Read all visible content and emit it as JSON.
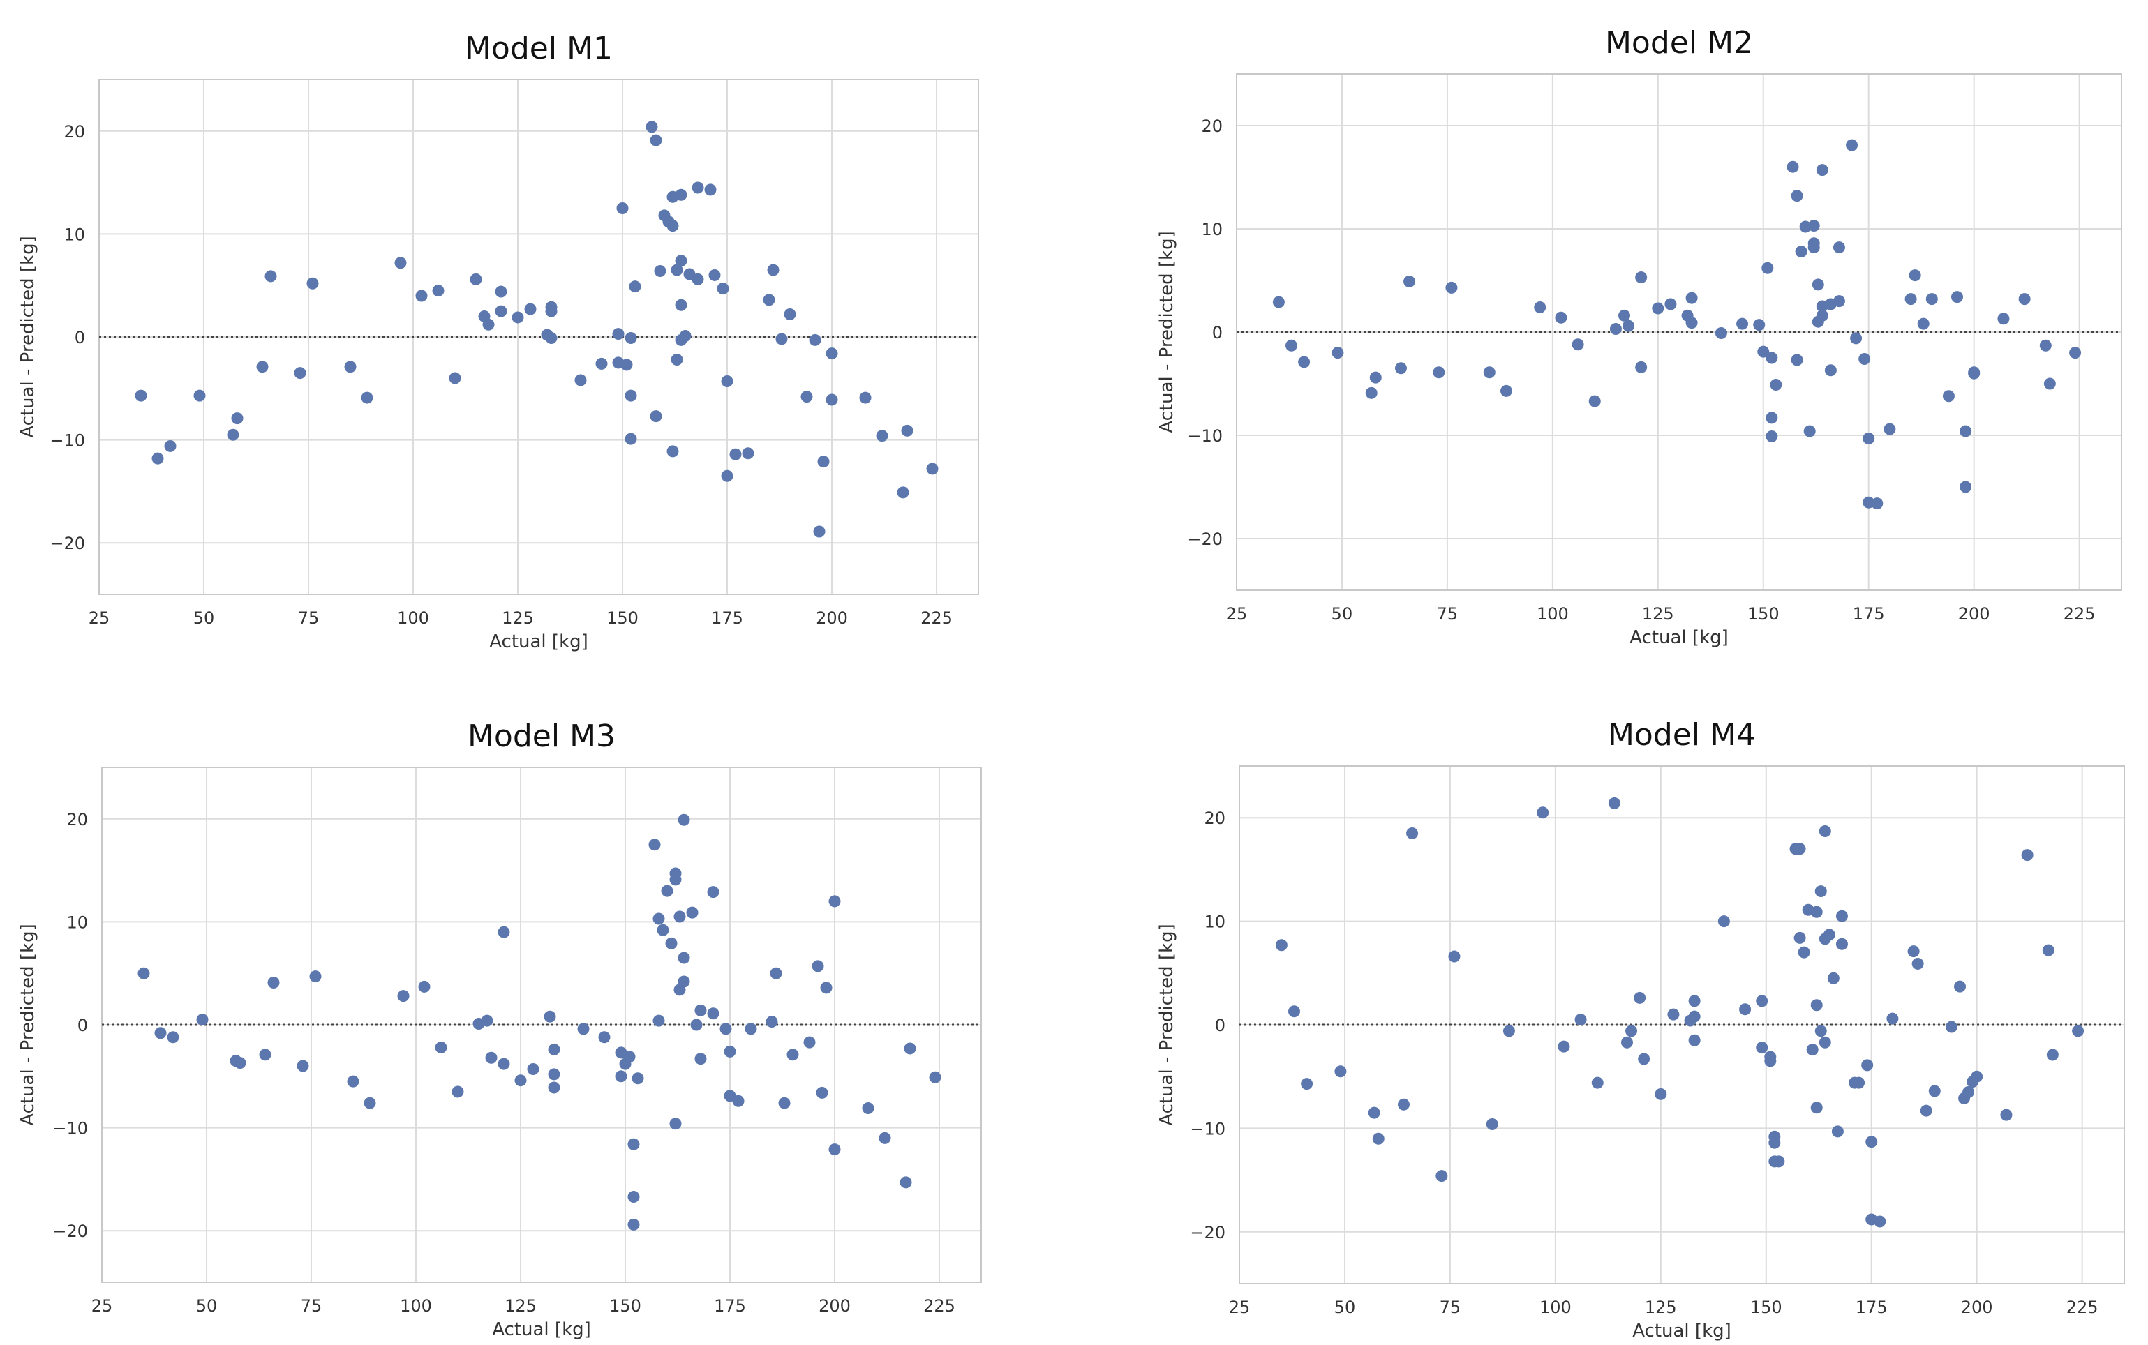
{
  "colors": {
    "marker": "#5b77ad",
    "grid": "#dcdcdc",
    "frame": "#c8c8c8",
    "zero_line": "#444444",
    "text": "#333333",
    "title": "#111111"
  },
  "chart_data": [
    {
      "type": "scatter",
      "title": "Model M1",
      "xlabel": "Actual [kg]",
      "ylabel": "Actual - Predicted [kg]",
      "xlim": [
        25,
        235
      ],
      "ylim": [
        -25,
        25
      ],
      "xticks": [
        25,
        50,
        75,
        100,
        125,
        150,
        175,
        200,
        225
      ],
      "yticks": [
        -20,
        -10,
        0,
        10,
        20
      ],
      "xtick_labels": [
        "25",
        "50",
        "75",
        "100",
        "125",
        "150",
        "175",
        "200",
        "225"
      ],
      "ytick_labels": [
        "−20",
        "−10",
        "0",
        "10",
        "20"
      ],
      "reference_line_y": 0,
      "points": [
        [
          35,
          -5.7
        ],
        [
          39,
          -11.8
        ],
        [
          42,
          -10.6
        ],
        [
          49,
          -5.7
        ],
        [
          57,
          -9.5
        ],
        [
          58,
          -7.9
        ],
        [
          64,
          -2.9
        ],
        [
          66,
          5.9
        ],
        [
          73,
          -3.5
        ],
        [
          76,
          5.2
        ],
        [
          85,
          -2.9
        ],
        [
          89,
          -5.9
        ],
        [
          97,
          7.2
        ],
        [
          102,
          4
        ],
        [
          106,
          4.5
        ],
        [
          110,
          -4
        ],
        [
          115,
          5.6
        ],
        [
          117,
          2
        ],
        [
          118,
          1.2
        ],
        [
          121,
          2.5
        ],
        [
          121,
          4.4
        ],
        [
          125,
          1.9
        ],
        [
          128,
          2.7
        ],
        [
          132,
          0.2
        ],
        [
          133,
          2.5
        ],
        [
          133,
          2.9
        ],
        [
          133,
          -0.1
        ],
        [
          140,
          -4.2
        ],
        [
          145,
          -2.6
        ],
        [
          149,
          0.3
        ],
        [
          149,
          -2.5
        ],
        [
          150,
          12.5
        ],
        [
          151,
          -2.7
        ],
        [
          152,
          -5.7
        ],
        [
          152,
          -9.9
        ],
        [
          152,
          -0.1
        ],
        [
          153,
          4.9
        ],
        [
          157,
          20.4
        ],
        [
          158,
          19.1
        ],
        [
          158,
          -7.7
        ],
        [
          159,
          6.4
        ],
        [
          160,
          11.8
        ],
        [
          161,
          11.2
        ],
        [
          162,
          -11.1
        ],
        [
          162,
          10.8
        ],
        [
          162,
          13.6
        ],
        [
          163,
          -2.2
        ],
        [
          163,
          6.5
        ],
        [
          164,
          7.4
        ],
        [
          164,
          13.8
        ],
        [
          164,
          -0.3
        ],
        [
          164,
          3.1
        ],
        [
          165,
          0.1
        ],
        [
          166,
          6.1
        ],
        [
          168,
          14.5
        ],
        [
          168,
          5.6
        ],
        [
          171,
          14.3
        ],
        [
          172,
          6
        ],
        [
          174,
          4.7
        ],
        [
          175,
          -13.5
        ],
        [
          175,
          -4.3
        ],
        [
          177,
          -11.4
        ],
        [
          180,
          -11.3
        ],
        [
          185,
          3.6
        ],
        [
          186,
          6.5
        ],
        [
          188,
          -0.2
        ],
        [
          190,
          2.2
        ],
        [
          194,
          -5.8
        ],
        [
          196,
          -0.3
        ],
        [
          197,
          -18.9
        ],
        [
          198,
          -12.1
        ],
        [
          200,
          -1.6
        ],
        [
          200,
          -6.1
        ],
        [
          208,
          -5.9
        ],
        [
          212,
          -9.6
        ],
        [
          217,
          -15.1
        ],
        [
          218,
          -9.1
        ],
        [
          224,
          -12.8
        ]
      ]
    },
    {
      "type": "scatter",
      "title": "Model M2",
      "xlabel": "Actual [kg]",
      "ylabel": "Actual - Predicted [kg]",
      "xlim": [
        25,
        235
      ],
      "ylim": [
        -25,
        25
      ],
      "xticks": [
        25,
        50,
        75,
        100,
        125,
        150,
        175,
        200,
        225
      ],
      "yticks": [
        -20,
        -10,
        0,
        10,
        20
      ],
      "xtick_labels": [
        "25",
        "50",
        "75",
        "100",
        "125",
        "150",
        "175",
        "200",
        "225"
      ],
      "ytick_labels": [
        "−20",
        "−10",
        "0",
        "10",
        "20"
      ],
      "reference_line_y": 0,
      "points": [
        [
          35,
          2.9
        ],
        [
          38,
          -1.3
        ],
        [
          41,
          -2.9
        ],
        [
          49,
          -2
        ],
        [
          57,
          -5.9
        ],
        [
          58,
          -4.4
        ],
        [
          64,
          -3.5
        ],
        [
          66,
          4.9
        ],
        [
          73,
          -3.9
        ],
        [
          76,
          4.3
        ],
        [
          85,
          -3.9
        ],
        [
          89,
          -5.7
        ],
        [
          97,
          2.4
        ],
        [
          102,
          1.4
        ],
        [
          106,
          -1.2
        ],
        [
          110,
          -6.7
        ],
        [
          115,
          0.3
        ],
        [
          117,
          1.6
        ],
        [
          118,
          0.6
        ],
        [
          121,
          5.3
        ],
        [
          121,
          -3.4
        ],
        [
          125,
          2.3
        ],
        [
          128,
          2.7
        ],
        [
          132,
          1.6
        ],
        [
          133,
          3.3
        ],
        [
          133,
          0.9
        ],
        [
          140,
          -0.1
        ],
        [
          145,
          0.8
        ],
        [
          149,
          0.7
        ],
        [
          150,
          -1.9
        ],
        [
          151,
          6.2
        ],
        [
          152,
          -2.5
        ],
        [
          152,
          -8.3
        ],
        [
          152,
          -10.1
        ],
        [
          153,
          -5.1
        ],
        [
          157,
          16
        ],
        [
          158,
          -2.7
        ],
        [
          158,
          13.2
        ],
        [
          159,
          7.8
        ],
        [
          160,
          10.2
        ],
        [
          161,
          -9.6
        ],
        [
          162,
          10.3
        ],
        [
          162,
          8.6
        ],
        [
          162,
          8.2
        ],
        [
          163,
          1
        ],
        [
          163,
          4.6
        ],
        [
          164,
          15.7
        ],
        [
          164,
          1.6
        ],
        [
          164,
          2.5
        ],
        [
          166,
          -3.7
        ],
        [
          166,
          2.7
        ],
        [
          168,
          3
        ],
        [
          168,
          8.2
        ],
        [
          171,
          18.1
        ],
        [
          172,
          -0.6
        ],
        [
          174,
          -2.6
        ],
        [
          175,
          -10.3
        ],
        [
          175,
          -16.5
        ],
        [
          177,
          -16.6
        ],
        [
          180,
          -9.4
        ],
        [
          185,
          3.2
        ],
        [
          186,
          5.5
        ],
        [
          188,
          0.8
        ],
        [
          190,
          3.2
        ],
        [
          194,
          -6.2
        ],
        [
          196,
          3.4
        ],
        [
          198,
          -9.6
        ],
        [
          198,
          -15
        ],
        [
          200,
          -4
        ],
        [
          200,
          -3.9
        ],
        [
          207,
          1.3
        ],
        [
          212,
          3.2
        ],
        [
          217,
          -1.3
        ],
        [
          218,
          -5
        ],
        [
          224,
          -2
        ]
      ]
    },
    {
      "type": "scatter",
      "title": "Model M3",
      "xlabel": "Actual [kg]",
      "ylabel": "Actual - Predicted [kg]",
      "xlim": [
        25,
        235
      ],
      "ylim": [
        -25,
        25
      ],
      "xticks": [
        25,
        50,
        75,
        100,
        125,
        150,
        175,
        200,
        225
      ],
      "yticks": [
        -20,
        -10,
        0,
        10,
        20
      ],
      "xtick_labels": [
        "25",
        "50",
        "75",
        "100",
        "125",
        "150",
        "175",
        "200",
        "225"
      ],
      "ytick_labels": [
        "−20",
        "−10",
        "0",
        "10",
        "20"
      ],
      "reference_line_y": 0,
      "points": [
        [
          35,
          5
        ],
        [
          39,
          -0.8
        ],
        [
          42,
          -1.2
        ],
        [
          49,
          0.5
        ],
        [
          57,
          -3.5
        ],
        [
          58,
          -3.7
        ],
        [
          64,
          -2.9
        ],
        [
          66,
          4.1
        ],
        [
          73,
          -4
        ],
        [
          76,
          4.7
        ],
        [
          85,
          -5.5
        ],
        [
          89,
          -7.6
        ],
        [
          97,
          2.8
        ],
        [
          102,
          3.7
        ],
        [
          106,
          -2.2
        ],
        [
          110,
          -6.5
        ],
        [
          115,
          0.1
        ],
        [
          117,
          0.4
        ],
        [
          118,
          -3.2
        ],
        [
          121,
          -3.8
        ],
        [
          121,
          9
        ],
        [
          125,
          -5.4
        ],
        [
          128,
          -4.3
        ],
        [
          132,
          0.8
        ],
        [
          133,
          -6.1
        ],
        [
          133,
          -2.4
        ],
        [
          133,
          -4.8
        ],
        [
          140,
          -0.4
        ],
        [
          145,
          -1.2
        ],
        [
          149,
          -2.7
        ],
        [
          149,
          -5
        ],
        [
          150,
          -3.8
        ],
        [
          151,
          -3.1
        ],
        [
          152,
          -16.7
        ],
        [
          152,
          -19.4
        ],
        [
          152,
          -11.6
        ],
        [
          153,
          -5.2
        ],
        [
          157,
          17.5
        ],
        [
          158,
          10.3
        ],
        [
          158,
          0.4
        ],
        [
          159,
          9.2
        ],
        [
          160,
          13
        ],
        [
          161,
          7.9
        ],
        [
          162,
          -9.6
        ],
        [
          162,
          14.7
        ],
        [
          162,
          14.1
        ],
        [
          163,
          3.4
        ],
        [
          163,
          10.5
        ],
        [
          164,
          4.2
        ],
        [
          164,
          19.9
        ],
        [
          164,
          6.5
        ],
        [
          166,
          10.9
        ],
        [
          167,
          0
        ],
        [
          168,
          -3.3
        ],
        [
          168,
          1.4
        ],
        [
          171,
          12.9
        ],
        [
          171,
          1.1
        ],
        [
          174,
          -0.4
        ],
        [
          175,
          -2.6
        ],
        [
          175,
          -6.9
        ],
        [
          177,
          -7.4
        ],
        [
          180,
          -0.4
        ],
        [
          185,
          0.3
        ],
        [
          186,
          5
        ],
        [
          188,
          -7.6
        ],
        [
          190,
          -2.9
        ],
        [
          194,
          -1.7
        ],
        [
          196,
          5.7
        ],
        [
          197,
          -6.6
        ],
        [
          198,
          3.6
        ],
        [
          200,
          -12.1
        ],
        [
          200,
          12
        ],
        [
          208,
          -8.1
        ],
        [
          212,
          -11
        ],
        [
          217,
          -15.3
        ],
        [
          218,
          -2.3
        ],
        [
          224,
          -5.1
        ]
      ]
    },
    {
      "type": "scatter",
      "title": "Model M4",
      "xlabel": "Actual [kg]",
      "ylabel": "Actual - Predicted [kg]",
      "xlim": [
        25,
        235
      ],
      "ylim": [
        -25,
        25
      ],
      "xticks": [
        25,
        50,
        75,
        100,
        125,
        150,
        175,
        200,
        225
      ],
      "yticks": [
        -20,
        -10,
        0,
        10,
        20
      ],
      "xtick_labels": [
        "25",
        "50",
        "75",
        "100",
        "125",
        "150",
        "175",
        "200",
        "225"
      ],
      "ytick_labels": [
        "−20",
        "−10",
        "0",
        "10",
        "20"
      ],
      "reference_line_y": 0,
      "points": [
        [
          35,
          7.7
        ],
        [
          38,
          1.3
        ],
        [
          41,
          -5.7
        ],
        [
          49,
          -4.5
        ],
        [
          57,
          -8.5
        ],
        [
          58,
          -11
        ],
        [
          64,
          -7.7
        ],
        [
          66,
          18.5
        ],
        [
          73,
          -14.6
        ],
        [
          76,
          6.6
        ],
        [
          85,
          -9.6
        ],
        [
          89,
          -0.6
        ],
        [
          97,
          20.5
        ],
        [
          102,
          -2.1
        ],
        [
          106,
          0.5
        ],
        [
          110,
          -5.6
        ],
        [
          114,
          21.4
        ],
        [
          117,
          -1.7
        ],
        [
          118,
          -0.6
        ],
        [
          120,
          2.6
        ],
        [
          121,
          -3.3
        ],
        [
          125,
          -6.7
        ],
        [
          128,
          1
        ],
        [
          132,
          0.4
        ],
        [
          133,
          -1.5
        ],
        [
          133,
          2.3
        ],
        [
          133,
          0.8
        ],
        [
          140,
          10
        ],
        [
          145,
          1.5
        ],
        [
          149,
          2.3
        ],
        [
          149,
          -2.2
        ],
        [
          151,
          -3.1
        ],
        [
          151,
          -3.5
        ],
        [
          152,
          -10.8
        ],
        [
          152,
          -11.4
        ],
        [
          152,
          -13.2
        ],
        [
          153,
          -13.2
        ],
        [
          157,
          17
        ],
        [
          158,
          17
        ],
        [
          158,
          8.4
        ],
        [
          159,
          7
        ],
        [
          160,
          11.1
        ],
        [
          161,
          -2.4
        ],
        [
          162,
          10.9
        ],
        [
          162,
          -8
        ],
        [
          162,
          1.9
        ],
        [
          163,
          12.9
        ],
        [
          163,
          -0.6
        ],
        [
          164,
          8.3
        ],
        [
          164,
          18.7
        ],
        [
          164,
          -1.7
        ],
        [
          165,
          8.7
        ],
        [
          166,
          4.5
        ],
        [
          167,
          -10.3
        ],
        [
          168,
          10.5
        ],
        [
          168,
          7.8
        ],
        [
          171,
          -5.6
        ],
        [
          172,
          -5.6
        ],
        [
          174,
          -3.9
        ],
        [
          175,
          -11.3
        ],
        [
          175,
          -18.8
        ],
        [
          177,
          -19
        ],
        [
          180,
          0.6
        ],
        [
          185,
          7.1
        ],
        [
          186,
          5.9
        ],
        [
          188,
          -8.3
        ],
        [
          190,
          -6.4
        ],
        [
          194,
          -0.2
        ],
        [
          196,
          3.7
        ],
        [
          197,
          -7.1
        ],
        [
          198,
          -6.5
        ],
        [
          199,
          -5.5
        ],
        [
          200,
          -5
        ],
        [
          207,
          -8.7
        ],
        [
          212,
          16.4
        ],
        [
          217,
          7.2
        ],
        [
          218,
          -2.9
        ],
        [
          224,
          -0.6
        ]
      ]
    }
  ]
}
